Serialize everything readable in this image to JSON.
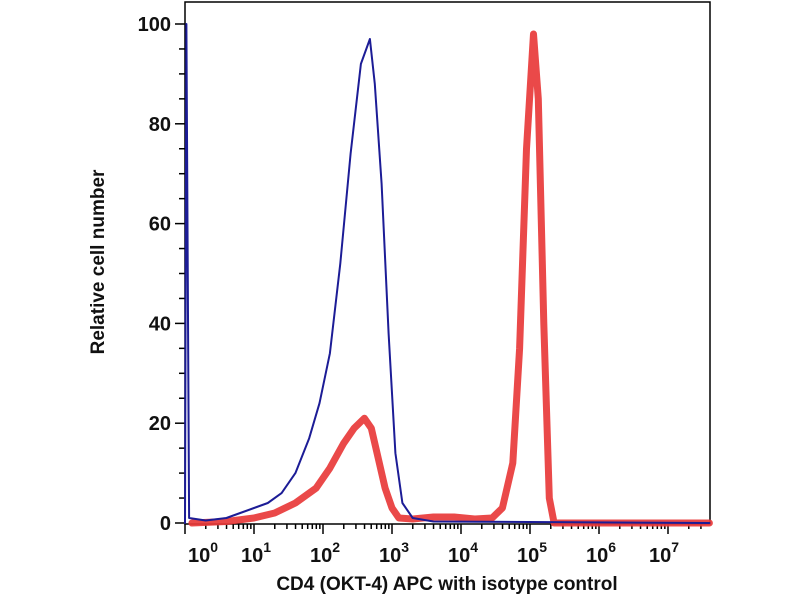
{
  "chart_data": {
    "type": "line",
    "title": "",
    "xlabel": "CD4 (OKT-4) APC with isotype control",
    "ylabel": "Relative cell number",
    "xscale": "log",
    "xlim_log10": [
      0,
      7.6
    ],
    "ylim": [
      0,
      104
    ],
    "grid": false,
    "legend": "none",
    "yticks": [
      "0",
      "20",
      "40",
      "60",
      "80",
      "100"
    ],
    "xticks": [
      {
        "base": "10",
        "exp": "0"
      },
      {
        "base": "10",
        "exp": "1"
      },
      {
        "base": "10",
        "exp": "2"
      },
      {
        "base": "10",
        "exp": "3"
      },
      {
        "base": "10",
        "exp": "4"
      },
      {
        "base": "10",
        "exp": "5"
      },
      {
        "base": "10",
        "exp": "6"
      },
      {
        "base": "10",
        "exp": "7"
      }
    ],
    "series": [
      {
        "name": "isotype control",
        "color": "#1c1c96",
        "log10_x": [
          0.0,
          0.02,
          0.06,
          0.3,
          0.6,
          0.8,
          1.0,
          1.2,
          1.4,
          1.6,
          1.8,
          1.95,
          2.1,
          2.25,
          2.4,
          2.55,
          2.68,
          2.75,
          2.85,
          2.95,
          3.05,
          3.15,
          3.3,
          3.6,
          7.6
        ],
        "y": [
          0,
          100,
          1,
          0.5,
          1,
          2,
          3,
          4,
          6,
          10,
          17,
          24,
          34,
          52,
          74,
          92,
          97,
          88,
          68,
          38,
          14,
          4,
          1,
          0.3,
          0
        ]
      },
      {
        "name": "CD4 (OKT-4) APC",
        "color": "#e8393a",
        "log10_x": [
          0.1,
          0.6,
          1.0,
          1.3,
          1.6,
          1.9,
          2.1,
          2.3,
          2.45,
          2.6,
          2.7,
          2.8,
          2.9,
          3.0,
          3.1,
          3.3,
          3.6,
          3.9,
          4.2,
          4.45,
          4.6,
          4.75,
          4.85,
          4.95,
          5.05,
          5.12,
          5.2,
          5.28,
          5.35,
          7.6
        ],
        "y": [
          0,
          0.3,
          1,
          2,
          4,
          7,
          11,
          16,
          19,
          21,
          19,
          13,
          7,
          3,
          1,
          0.8,
          1.2,
          1.2,
          0.8,
          1,
          3,
          12,
          35,
          75,
          98,
          85,
          40,
          5,
          0,
          0
        ]
      }
    ]
  }
}
